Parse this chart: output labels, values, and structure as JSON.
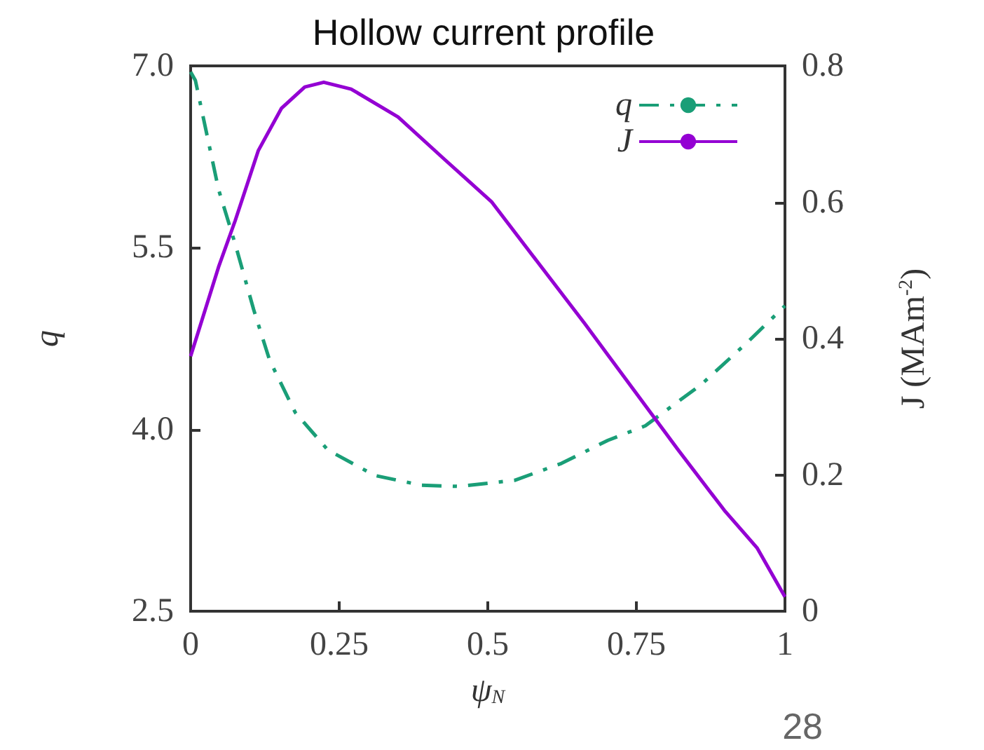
{
  "chart_data": {
    "type": "line",
    "title": "Hollow current profile",
    "xlabel": "ψ$_{N}$",
    "ylabel": "q",
    "y2label": "J (MAm$^{-2}$)",
    "annotations": [
      "28"
    ],
    "xlim": [
      0,
      1
    ],
    "xticks": [
      0,
      0.25,
      0.5,
      0.75,
      1
    ],
    "ylim": [
      2.5,
      7.0
    ],
    "yticks": [
      {
        "value": 2.5,
        "label": "2.5"
      },
      {
        "value": 4,
        "label": "4.0"
      },
      {
        "value": 5.5,
        "label": "5.5"
      },
      {
        "value": 7,
        "label": "7.0"
      }
    ],
    "y2lim": [
      0,
      0.8
    ],
    "y2ticks": [
      0,
      0.2,
      0.4,
      0.6,
      0.8
    ],
    "legend": "top right",
    "grid": false,
    "marker": "none",
    "series": [
      {
        "name": "q",
        "color": "#1a9e77",
        "line_style": "dashed",
        "x": [
          0,
          0.008,
          0.047,
          0.075,
          0.106,
          0.133,
          0.176,
          0.231,
          0.31,
          0.388,
          0.451,
          0.545,
          0.624,
          0.702,
          0.765,
          0.859,
          0.937,
          1
        ],
        "values": [
          6.95,
          6.88,
          5.98,
          5.53,
          4.99,
          4.57,
          4.14,
          3.83,
          3.62,
          3.54,
          3.53,
          3.58,
          3.72,
          3.91,
          4.03,
          4.37,
          4.72,
          5.02
        ]
      },
      {
        "name": "J",
        "color": "#9400d3",
        "line_style": "solid",
        "axis": "y2",
        "x": [
          0,
          0.047,
          0.075,
          0.114,
          0.153,
          0.192,
          0.224,
          0.27,
          0.349,
          0.427,
          0.506,
          0.584,
          0.663,
          0.741,
          0.82,
          0.898,
          0.953,
          1
        ],
        "values": [
          0.374,
          0.505,
          0.573,
          0.676,
          0.738,
          0.769,
          0.776,
          0.766,
          0.725,
          0.663,
          0.601,
          0.512,
          0.422,
          0.33,
          0.237,
          0.148,
          0.093,
          0.021
        ]
      }
    ]
  }
}
